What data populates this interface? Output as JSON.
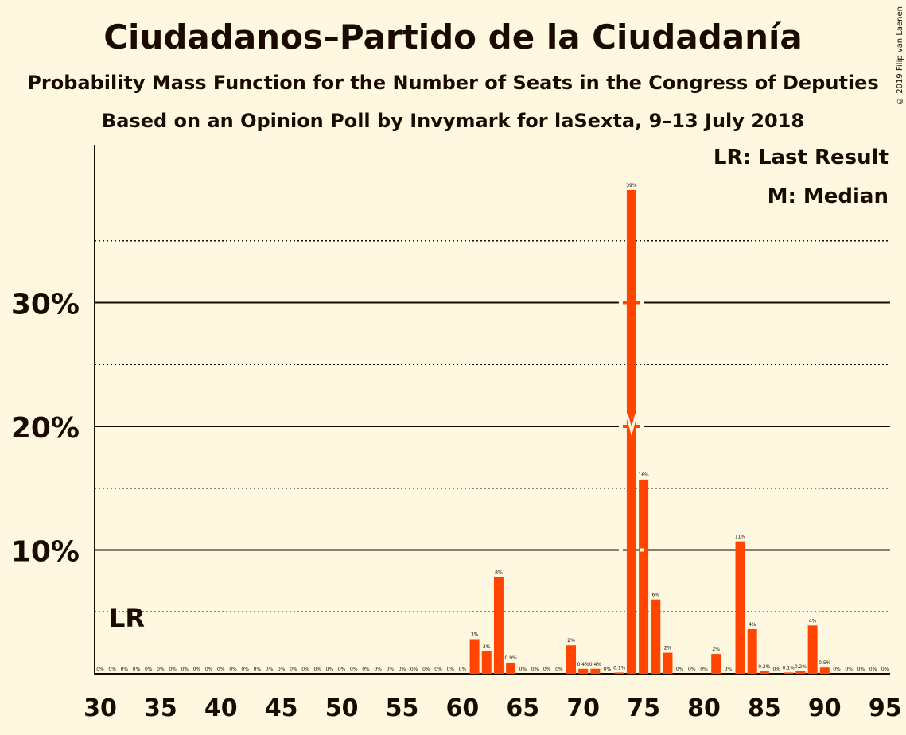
{
  "title": "Ciudadanos–Partido de la Ciudadanía",
  "subtitle": "Probability Mass Function for the Number of Seats in the Congress of Deputies",
  "subtitle2": "Based on an Opinion Poll by Invymark for laSexta, 9–13 July 2018",
  "legend": {
    "lr": "LR: Last Result",
    "m": "M: Median"
  },
  "copyright": "© 2019 Filip van Laenen",
  "lr_label": "LR",
  "colors": {
    "bar": "#ff4500",
    "background": "#fff8e1",
    "text": "#1a0a00"
  },
  "chart_data": {
    "type": "bar",
    "xlabel": "",
    "ylabel": "",
    "x_ticks": [
      "30",
      "35",
      "40",
      "45",
      "50",
      "55",
      "60",
      "65",
      "70",
      "75",
      "80",
      "85",
      "90",
      "95"
    ],
    "y_ticks": [
      "10%",
      "20%",
      "30%"
    ],
    "ylim": [
      0,
      42
    ],
    "last_result": 32,
    "median": 74,
    "seats": [
      30,
      31,
      32,
      33,
      34,
      35,
      36,
      37,
      38,
      39,
      40,
      41,
      42,
      43,
      44,
      45,
      46,
      47,
      48,
      49,
      50,
      51,
      52,
      53,
      54,
      55,
      56,
      57,
      58,
      59,
      60,
      61,
      62,
      63,
      64,
      65,
      66,
      67,
      68,
      69,
      70,
      71,
      72,
      73,
      74,
      75,
      76,
      77,
      78,
      79,
      80,
      81,
      82,
      83,
      84,
      85,
      86,
      87,
      88,
      89,
      90,
      91,
      92,
      93,
      94,
      95
    ],
    "values": [
      0,
      0,
      0,
      0,
      0,
      0,
      0,
      0,
      0,
      0,
      0,
      0,
      0,
      0,
      0,
      0,
      0,
      0,
      0,
      0,
      0,
      0,
      0,
      0,
      0,
      0,
      0,
      0,
      0,
      0,
      0,
      2.8,
      1.8,
      7.8,
      0.9,
      0,
      0,
      0,
      0,
      2.3,
      0.4,
      0.4,
      0,
      0.1,
      39.1,
      15.7,
      6.0,
      1.7,
      0,
      0,
      0,
      1.6,
      0,
      10.7,
      3.6,
      0.2,
      0,
      0.1,
      0.2,
      3.9,
      0.5,
      0,
      0,
      0,
      0,
      0
    ],
    "labels": [
      "0%",
      "0%",
      "0%",
      "0%",
      "0%",
      "0%",
      "0%",
      "0%",
      "0%",
      "0%",
      "0%",
      "0%",
      "0%",
      "0%",
      "0%",
      "0%",
      "0%",
      "0%",
      "0%",
      "0%",
      "0%",
      "0%",
      "0%",
      "0%",
      "0%",
      "0%",
      "0%",
      "0%",
      "0%",
      "0%",
      "0%",
      "3%",
      "2%",
      "8%",
      "0.9%",
      "0%",
      "0%",
      "0%",
      "0%",
      "2%",
      "0.4%",
      "0.4%",
      "0%",
      "0.1%",
      "39%",
      "16%",
      "6%",
      "2%",
      "0%",
      "0%",
      "0%",
      "2%",
      "0%",
      "11%",
      "4%",
      "0.2%",
      "0%",
      "0.1%",
      "0.2%",
      "4%",
      "0.5%",
      "0%",
      "0%",
      "0%",
      "0%",
      "0%"
    ]
  }
}
